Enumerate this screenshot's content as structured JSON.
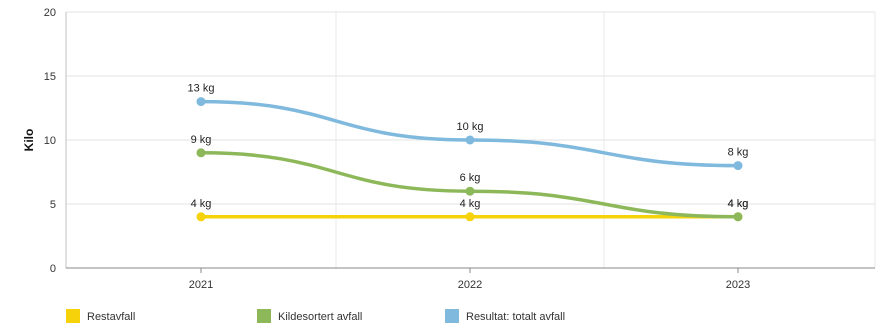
{
  "chart_data": {
    "type": "line",
    "title": "",
    "xlabel": "",
    "ylabel": "Kilo",
    "categories": [
      "2021",
      "2022",
      "2023"
    ],
    "ylim": [
      0,
      20
    ],
    "yticks": [
      0,
      5,
      10,
      15,
      20
    ],
    "grid": true,
    "legend_position": "bottom",
    "smooth": true,
    "series": [
      {
        "name": "Restavfall",
        "color": "#f5d20a",
        "values": [
          4,
          4,
          4
        ],
        "labels": [
          "4 kg",
          "4 kg",
          "4 kg"
        ]
      },
      {
        "name": "Kildesortert avfall",
        "color": "#8db85a",
        "values": [
          9,
          6,
          4
        ],
        "labels": [
          "9 kg",
          "6 kg",
          "4 kg"
        ]
      },
      {
        "name": "Resultat: totalt avfall",
        "color": "#80b9de",
        "values": [
          13,
          10,
          8
        ],
        "labels": [
          "13 kg",
          "10 kg",
          "8 kg"
        ]
      }
    ]
  }
}
